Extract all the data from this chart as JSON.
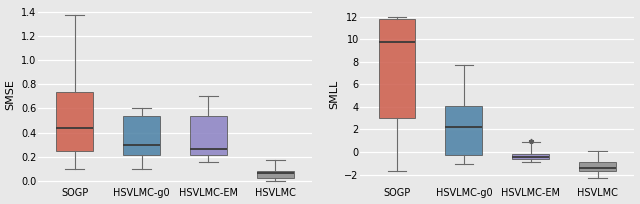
{
  "left_ylabel": "SMSE",
  "right_ylabel": "SMLL",
  "categories": [
    "SOGP",
    "HSVLMC-g0",
    "HSVLMC-EM",
    "HSVLMC"
  ],
  "colors": [
    "#cd5c4a",
    "#4a80a5",
    "#8b82c4",
    "#8a8a8a"
  ],
  "left_boxes": [
    {
      "med": 0.44,
      "q1": 0.25,
      "q3": 0.74,
      "whislo": 0.1,
      "whishi": 1.37,
      "fliers": [],
      "mean": 0.44
    },
    {
      "med": 0.3,
      "q1": 0.22,
      "q3": 0.54,
      "whislo": 0.1,
      "whishi": 0.6,
      "fliers": [],
      "mean": 0.3
    },
    {
      "med": 0.265,
      "q1": 0.22,
      "q3": 0.54,
      "whislo": 0.155,
      "whishi": 0.7,
      "fliers": [],
      "mean": 0.265
    },
    {
      "med": 0.065,
      "q1": 0.03,
      "q3": 0.085,
      "whislo": 0.005,
      "whishi": 0.175,
      "fliers": [],
      "mean": 0.065
    }
  ],
  "left_ylim": [
    -0.02,
    1.45
  ],
  "left_yticks": [
    0.0,
    0.2,
    0.4,
    0.6,
    0.8,
    1.0,
    1.2,
    1.4
  ],
  "right_boxes": [
    {
      "med": 9.8,
      "q1": 3.0,
      "q3": 11.8,
      "whislo": -1.7,
      "whishi": 12.0,
      "fliers": [],
      "mean": 9.8
    },
    {
      "med": 2.2,
      "q1": -0.3,
      "q3": 4.1,
      "whislo": -1.1,
      "whishi": 7.7,
      "fliers": [],
      "mean": 2.2
    },
    {
      "med": -0.45,
      "q1": -0.65,
      "q3": -0.15,
      "whislo": -0.85,
      "whishi": 0.9,
      "fliers": [
        0.95
      ],
      "mean": -0.45
    },
    {
      "med": -1.4,
      "q1": -1.7,
      "q3": -0.9,
      "whislo": -2.3,
      "whishi": 0.1,
      "fliers": [],
      "mean": -1.4
    }
  ],
  "right_ylim": [
    -2.8,
    13.0
  ],
  "right_yticks": [
    -2,
    0,
    2,
    4,
    6,
    8,
    10,
    12
  ],
  "background_color": "#e8e8e8",
  "figsize": [
    6.4,
    2.04
  ],
  "dpi": 100,
  "tick_fontsize": 7.0,
  "ylabel_fontsize": 8.0
}
